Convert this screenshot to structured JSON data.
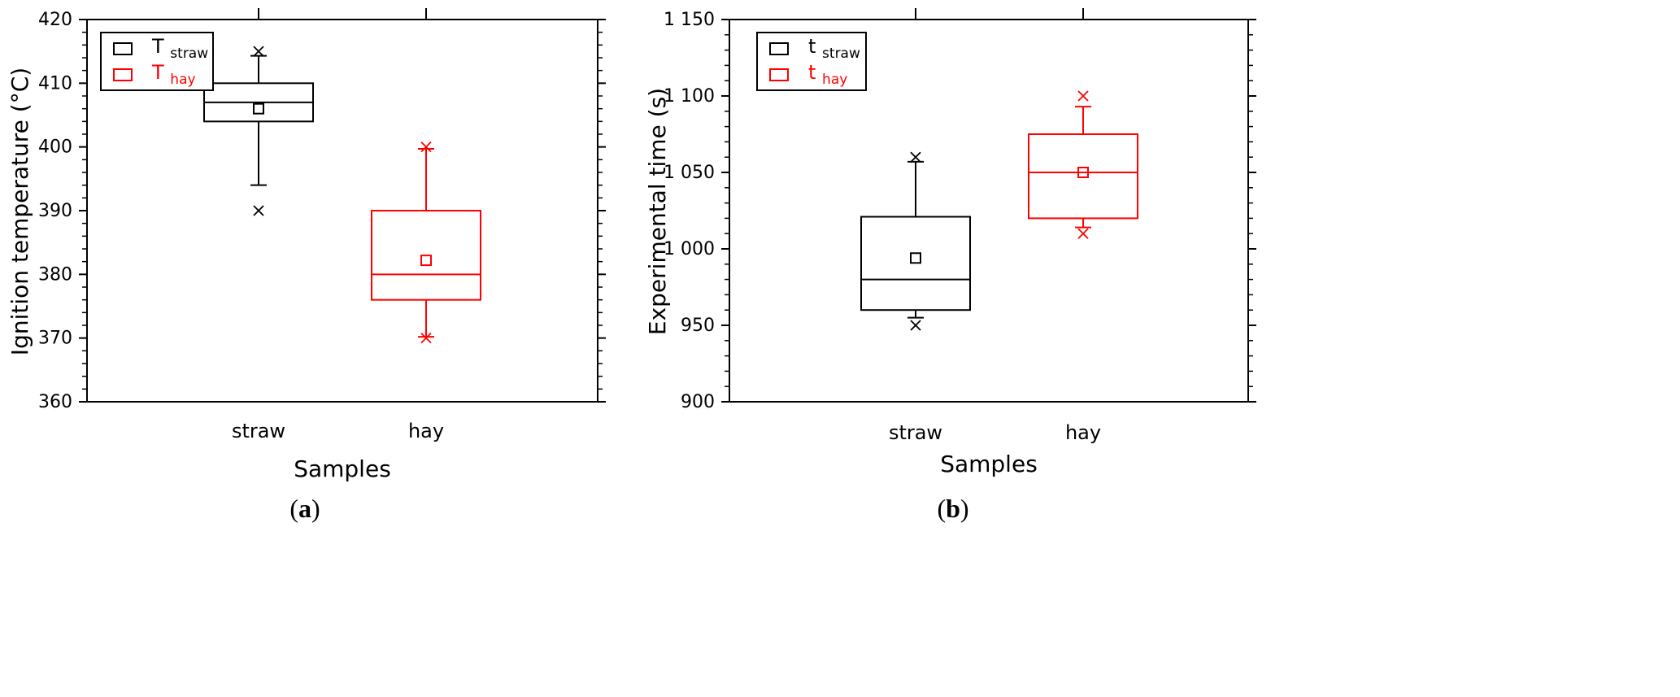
{
  "chart_data": [
    {
      "type": "box",
      "panel_label": "a",
      "xlabel": "Samples",
      "ylabel": "Ignition temperature (°C)",
      "ylim": [
        360,
        420
      ],
      "yticks": [
        "360",
        "370",
        "380",
        "390",
        "400",
        "410",
        "420"
      ],
      "categories": [
        "straw",
        "hay"
      ],
      "legend_position": "top-left",
      "series": [
        {
          "name": "T",
          "subscript": "straw",
          "category": "straw",
          "color": "#000000",
          "whisker_low": 394,
          "q1": 404,
          "median": 407,
          "q3": 410,
          "whisker_high": 414.3,
          "mean": 406,
          "min": 390,
          "max": 415
        },
        {
          "name": "T",
          "subscript": "hay",
          "category": "hay",
          "color": "#ff0000",
          "whisker_low": 370.2,
          "q1": 376,
          "median": 380,
          "q3": 390,
          "whisker_high": 399.7,
          "mean": 382.2,
          "min": 370,
          "max": 400
        }
      ]
    },
    {
      "type": "box",
      "panel_label": "b",
      "xlabel": "Samples",
      "ylabel": "Experimental time (s)",
      "ylim": [
        900,
        1150
      ],
      "yticks": [
        "900",
        "950",
        "1 000",
        "1 050",
        "1 100",
        "1 150"
      ],
      "categories": [
        "straw",
        "hay"
      ],
      "legend_position": "top-left",
      "series": [
        {
          "name": "t",
          "subscript": "straw",
          "category": "straw",
          "color": "#000000",
          "whisker_low": 955,
          "q1": 960,
          "median": 980,
          "q3": 1021,
          "whisker_high": 1057,
          "mean": 994,
          "min": 950,
          "max": 1060
        },
        {
          "name": "t",
          "subscript": "hay",
          "category": "hay",
          "color": "#ff0000",
          "whisker_low": 1014,
          "q1": 1020,
          "median": 1050,
          "q3": 1075,
          "whisker_high": 1093,
          "mean": 1050,
          "min": 1010,
          "max": 1100
        }
      ]
    }
  ]
}
